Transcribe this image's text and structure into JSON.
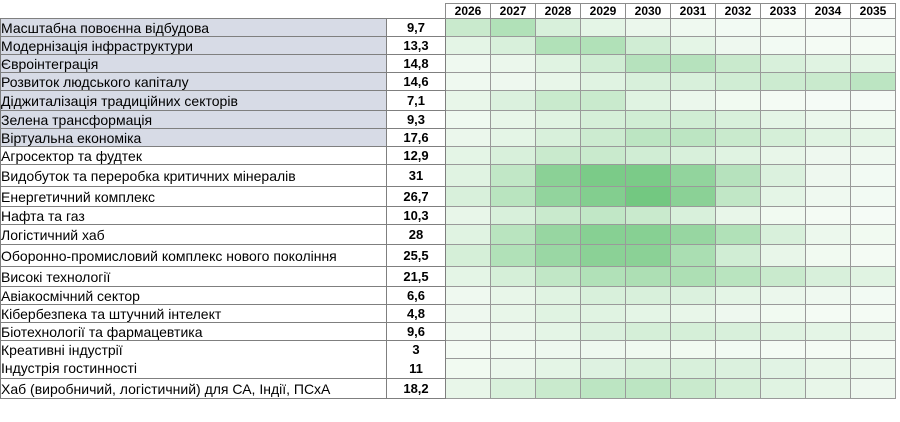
{
  "chart_data": {
    "type": "heatmap",
    "years": [
      "2026",
      "2027",
      "2028",
      "2029",
      "2030",
      "2031",
      "2032",
      "2033",
      "2034",
      "2035"
    ],
    "color_low": "#f7fcf7",
    "color_high": "#5cbf6c",
    "rows": [
      {
        "name": "Масштабна повоєнна відбудова",
        "value": "9,7",
        "highlight": true,
        "intensity": [
          0.3,
          0.45,
          0.2,
          0.12,
          0.08,
          0.05,
          0.03,
          0.02,
          0.01,
          0.01
        ]
      },
      {
        "name": "Модернізація інфраструктури",
        "value": "13,3",
        "highlight": true,
        "intensity": [
          0.12,
          0.2,
          0.45,
          0.45,
          0.25,
          0.12,
          0.06,
          0.03,
          0.02,
          0.02
        ]
      },
      {
        "name": "Євроінтеграція",
        "value": "14,8",
        "highlight": true,
        "intensity": [
          0.05,
          0.08,
          0.15,
          0.25,
          0.42,
          0.42,
          0.3,
          0.2,
          0.15,
          0.12
        ]
      },
      {
        "name": "Розвиток людського капіталу",
        "value": "14,6",
        "highlight": true,
        "intensity": [
          0.05,
          0.06,
          0.1,
          0.15,
          0.2,
          0.2,
          0.25,
          0.28,
          0.3,
          0.38
        ]
      },
      {
        "name": "Діджиталізація традиційних секторів",
        "value": "7,1",
        "highlight": true,
        "intensity": [
          0.1,
          0.18,
          0.3,
          0.3,
          0.15,
          0.08,
          0.04,
          0.02,
          0.01,
          0.01
        ]
      },
      {
        "name": "Зелена трансформація",
        "value": "9,3",
        "highlight": true,
        "intensity": [
          0.05,
          0.1,
          0.15,
          0.22,
          0.25,
          0.25,
          0.2,
          0.12,
          0.08,
          0.05
        ]
      },
      {
        "name": "Віртуальна економіка",
        "value": "17,6",
        "highlight": true,
        "intensity": [
          0.08,
          0.12,
          0.2,
          0.28,
          0.38,
          0.38,
          0.3,
          0.22,
          0.15,
          0.12
        ]
      },
      {
        "name": "Агросектор та фудтек",
        "value": "12,9",
        "highlight": false,
        "intensity": [
          0.12,
          0.2,
          0.3,
          0.3,
          0.25,
          0.2,
          0.15,
          0.1,
          0.06,
          0.05
        ]
      },
      {
        "name": "Видобуток та переробка критичних мінералів",
        "value": "31",
        "highlight": false,
        "intensity": [
          0.15,
          0.35,
          0.7,
          0.8,
          0.8,
          0.65,
          0.42,
          0.18,
          0.06,
          0.03
        ]
      },
      {
        "name": "Енергетичний комплекс",
        "value": "26,7",
        "highlight": false,
        "intensity": [
          0.2,
          0.4,
          0.65,
          0.75,
          0.85,
          0.7,
          0.35,
          0.12,
          0.05,
          0.03
        ]
      },
      {
        "name": "Нафта та газ",
        "value": "10,3",
        "highlight": false,
        "intensity": [
          0.1,
          0.2,
          0.3,
          0.35,
          0.3,
          0.2,
          0.1,
          0.04,
          0.02,
          0.01
        ]
      },
      {
        "name": "Логістичний хаб",
        "value": "28",
        "highlight": false,
        "intensity": [
          0.15,
          0.4,
          0.62,
          0.72,
          0.72,
          0.62,
          0.45,
          0.2,
          0.07,
          0.04
        ]
      },
      {
        "name": "Оборонно-промисловий комплекс нового покоління",
        "value": "25,5",
        "highlight": false,
        "intensity": [
          0.22,
          0.45,
          0.6,
          0.7,
          0.7,
          0.5,
          0.25,
          0.1,
          0.04,
          0.02
        ]
      },
      {
        "name": "Високі технології",
        "value": "21,5",
        "highlight": false,
        "intensity": [
          0.12,
          0.22,
          0.35,
          0.45,
          0.48,
          0.48,
          0.4,
          0.3,
          0.2,
          0.15
        ]
      },
      {
        "name": "Авіакосмічний сектор",
        "value": "6,6",
        "highlight": false,
        "intensity": [
          0.05,
          0.1,
          0.15,
          0.2,
          0.2,
          0.18,
          0.12,
          0.08,
          0.05,
          0.03
        ]
      },
      {
        "name": "Кібербезпека та штучний інтелект",
        "value": "4,8",
        "highlight": false,
        "intensity": [
          0.06,
          0.1,
          0.15,
          0.15,
          0.12,
          0.1,
          0.06,
          0.04,
          0.02,
          0.02
        ]
      },
      {
        "name": "Біотехнології та фармацевтика",
        "value": "9,6",
        "highlight": false,
        "intensity": [
          0.05,
          0.08,
          0.12,
          0.18,
          0.22,
          0.22,
          0.2,
          0.15,
          0.12,
          0.1
        ]
      },
      {
        "name": "Креативні індустрії",
        "value": "3",
        "highlight": false,
        "intensity": [
          0.02,
          0.04,
          0.06,
          0.06,
          0.05,
          0.04,
          0.03,
          0.02,
          0.02,
          0.02
        ]
      },
      {
        "name": "Індустрія гостинності",
        "value": "11",
        "highlight": false,
        "intensity": [
          0.04,
          0.08,
          0.12,
          0.16,
          0.2,
          0.2,
          0.18,
          0.14,
          0.1,
          0.08
        ]
      },
      {
        "name": "Хаб (виробничий, логістичний) для СА, Індії, ПСхА",
        "value": "18,2",
        "highlight": false,
        "intensity": [
          0.1,
          0.2,
          0.3,
          0.38,
          0.38,
          0.3,
          0.22,
          0.15,
          0.1,
          0.06
        ]
      }
    ]
  }
}
